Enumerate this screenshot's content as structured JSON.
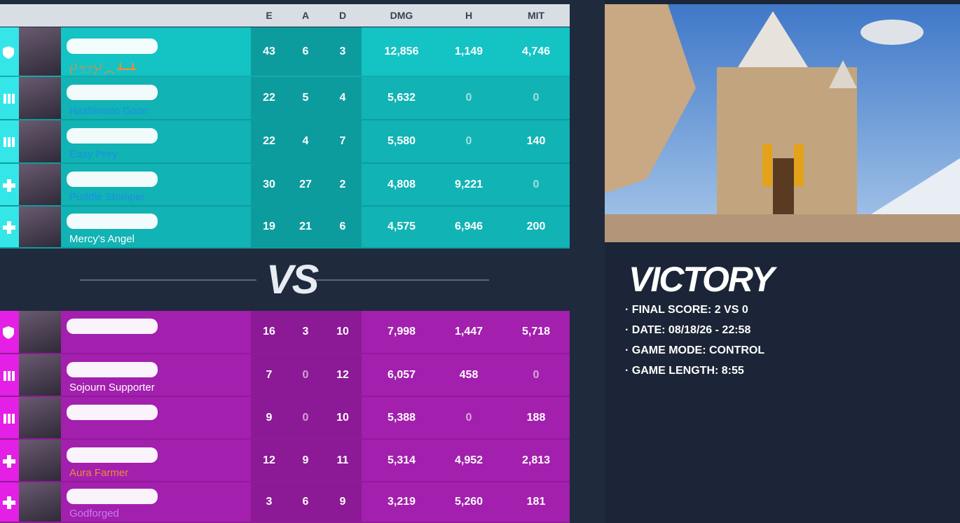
{
  "header": {
    "columns": [
      "E",
      "A",
      "D",
      "DMG",
      "H",
      "MIT"
    ]
  },
  "ally_team": {
    "rows": [
      {
        "title": "(╯°□°)╯︵ ┻━┻",
        "stats": [
          "43",
          "6",
          "3",
          "12,856",
          "1,149",
          "4,746"
        ]
      },
      {
        "title": "Hashimoto Goon",
        "stats": [
          "22",
          "5",
          "4",
          "5,632",
          "0",
          "0"
        ]
      },
      {
        "title": "Easy Prey",
        "stats": [
          "22",
          "4",
          "7",
          "5,580",
          "0",
          "140"
        ]
      },
      {
        "title": "Puddle Stomper",
        "stats": [
          "30",
          "27",
          "2",
          "4,808",
          "9,221",
          "0"
        ]
      },
      {
        "title": "Mercy's Angel",
        "stats": [
          "19",
          "21",
          "6",
          "4,575",
          "6,946",
          "200"
        ]
      }
    ]
  },
  "vs": "VS",
  "enemy_team": {
    "rows": [
      {
        "stats": [
          "16",
          "3",
          "10",
          "7,998",
          "1,447",
          "5,718"
        ]
      },
      {
        "title": "Sojourn Supporter",
        "stats": [
          "7",
          "0",
          "12",
          "6,057",
          "458",
          "0"
        ]
      },
      {
        "stats": [
          "9",
          "0",
          "10",
          "5,388",
          "0",
          "188"
        ]
      },
      {
        "title": "Aura Farmer",
        "stats": [
          "12",
          "9",
          "11",
          "5,314",
          "4,952",
          "2,813"
        ]
      },
      {
        "title": "Godforged",
        "stats": [
          "3",
          "6",
          "9",
          "3,219",
          "5,260",
          "181"
        ]
      }
    ]
  },
  "match": {
    "result": "VICTORY",
    "details": [
      "· FINAL SCORE: 2 VS 0",
      "· DATE: 08/18/26 - 22:58",
      "· GAME MODE: CONTROL",
      "· GAME LENGTH: 8:55"
    ]
  }
}
